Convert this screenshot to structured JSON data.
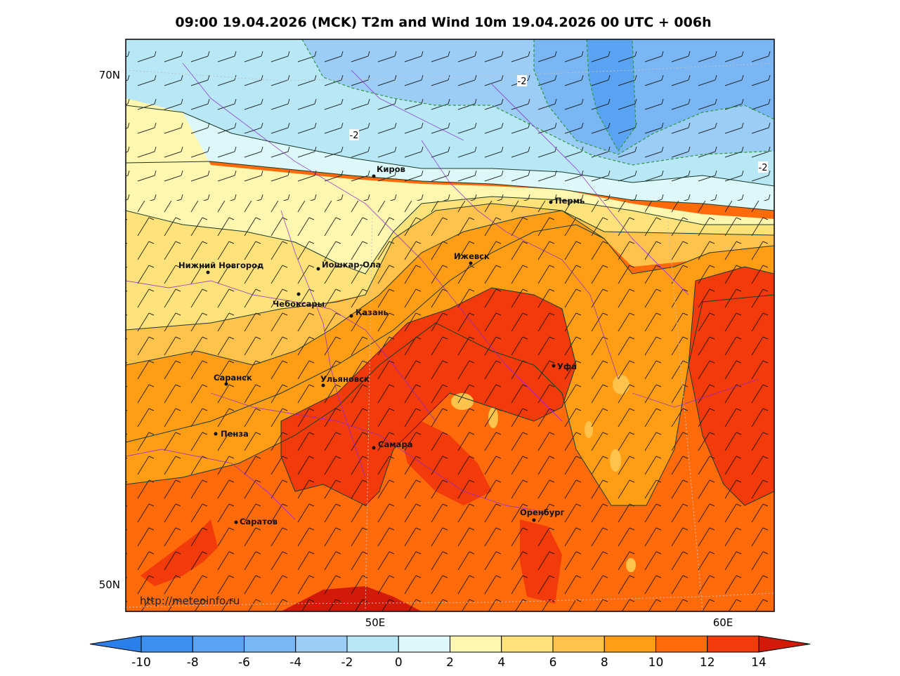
{
  "title": "09:00 19.04.2026 (MCK) T2m and Wind 10m 19.04.2026 00 UTC + 006h",
  "watermark": "http://meteoinfo.ru",
  "lat_labels": [
    "70N",
    "50N"
  ],
  "lon_labels": [
    "50E",
    "60E"
  ],
  "contour_labels": [
    "-2",
    "-2",
    "-2"
  ],
  "cities": [
    {
      "name": "Киров"
    },
    {
      "name": "Пермь"
    },
    {
      "name": "Ижевск"
    },
    {
      "name": "Нижний Новгород"
    },
    {
      "name": "Йошкар-Ола"
    },
    {
      "name": "Чебоксары"
    },
    {
      "name": "Казань"
    },
    {
      "name": "Саранск"
    },
    {
      "name": "Ульяновск"
    },
    {
      "name": "Уфа"
    },
    {
      "name": "Пенза"
    },
    {
      "name": "Самара"
    },
    {
      "name": "Оренбург"
    },
    {
      "name": "Саратов"
    }
  ],
  "colorbar": {
    "ticks": [
      "-10",
      "-8",
      "-6",
      "-4",
      "-2",
      "0",
      "2",
      "4",
      "6",
      "8",
      "10",
      "12",
      "14"
    ],
    "under_color": "#2a7fe8",
    "colors": [
      "#3d8ff0",
      "#5aa3f2",
      "#7ab6f4",
      "#9ccdf6",
      "#b8e8f6",
      "#ddf8f8",
      "#fff6b0",
      "#ffe37a",
      "#ffc24a",
      "#ff9e14",
      "#ff6a0a",
      "#f33a0a"
    ],
    "over_color": "#d21a08"
  }
}
